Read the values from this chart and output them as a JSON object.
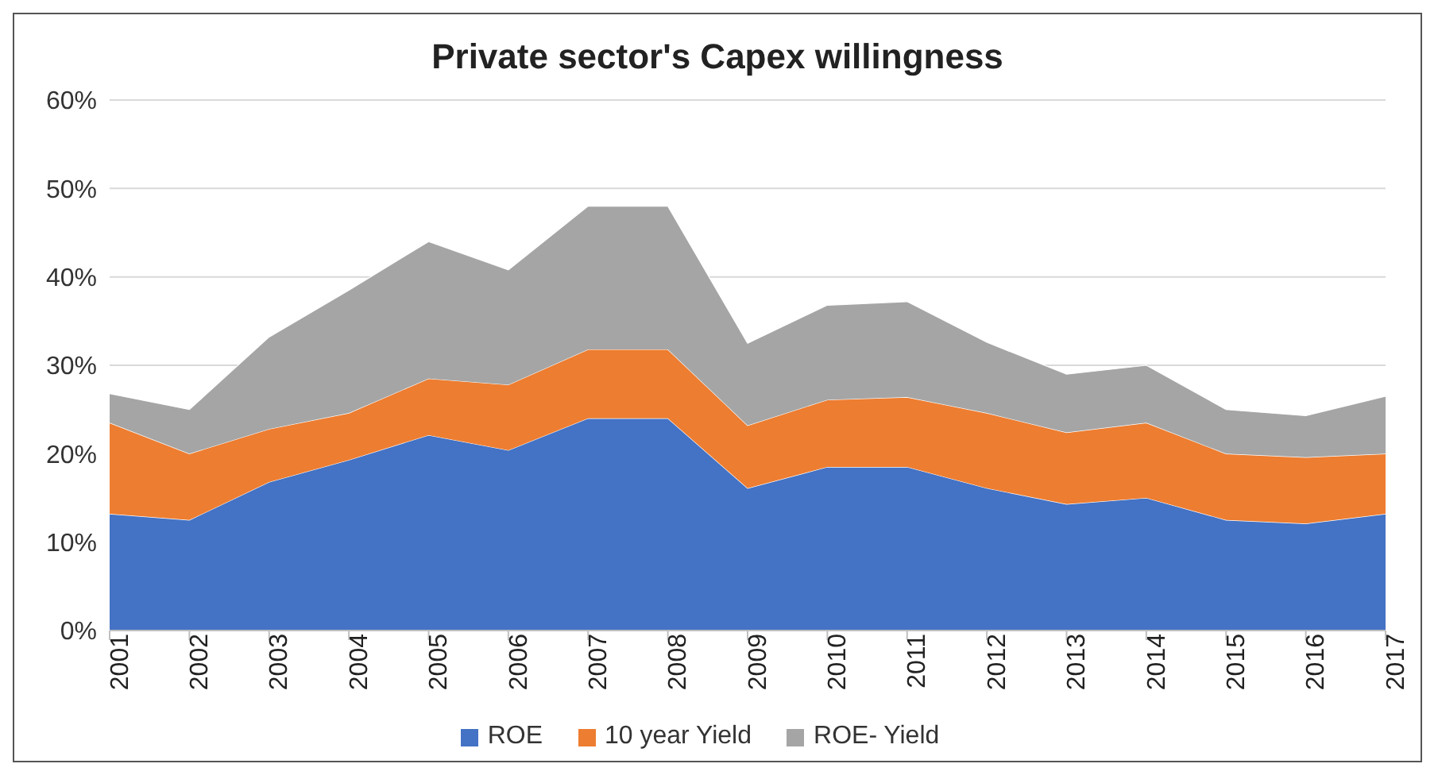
{
  "chart_data": {
    "type": "area",
    "stacked": true,
    "title": "Private sector's Capex willingness",
    "categories": [
      "2001",
      "2002",
      "2003",
      "2004",
      "2005",
      "2006",
      "2007",
      "2008",
      "2009",
      "2010",
      "2011",
      "2012",
      "2013",
      "2014",
      "2015",
      "2016",
      "2017"
    ],
    "series": [
      {
        "name": "ROE",
        "color": "#4472c4",
        "values": [
          13.2,
          12.5,
          16.8,
          19.3,
          22.1,
          20.4,
          24,
          24,
          16.1,
          18.5,
          18.5,
          16.1,
          14.3,
          15,
          12.5,
          12.1,
          13.2
        ]
      },
      {
        "name": "10 year Yield",
        "color": "#ed7d31",
        "values": [
          10.3,
          7.5,
          6,
          5.3,
          6.4,
          7.4,
          7.8,
          7.8,
          7.1,
          7.6,
          7.9,
          8.5,
          8.1,
          8.5,
          7.5,
          7.5,
          6.8
        ]
      },
      {
        "name": "ROE- Yield",
        "color": "#a5a5a5",
        "values": [
          3.3,
          5,
          10.4,
          13.9,
          15.5,
          13,
          16.2,
          16.2,
          9.3,
          10.7,
          10.8,
          8,
          6.6,
          6.5,
          5,
          4.7,
          6.5
        ]
      }
    ],
    "ylim": [
      0,
      60
    ],
    "yticks": [
      {
        "value": 0,
        "label": "0%"
      },
      {
        "value": 10,
        "label": "10%"
      },
      {
        "value": 20,
        "label": "20%"
      },
      {
        "value": 30,
        "label": "30%"
      },
      {
        "value": 40,
        "label": "40%"
      },
      {
        "value": 50,
        "label": "50%"
      },
      {
        "value": 60,
        "label": "60%"
      }
    ],
    "grid": "y",
    "legend": "bottom"
  }
}
